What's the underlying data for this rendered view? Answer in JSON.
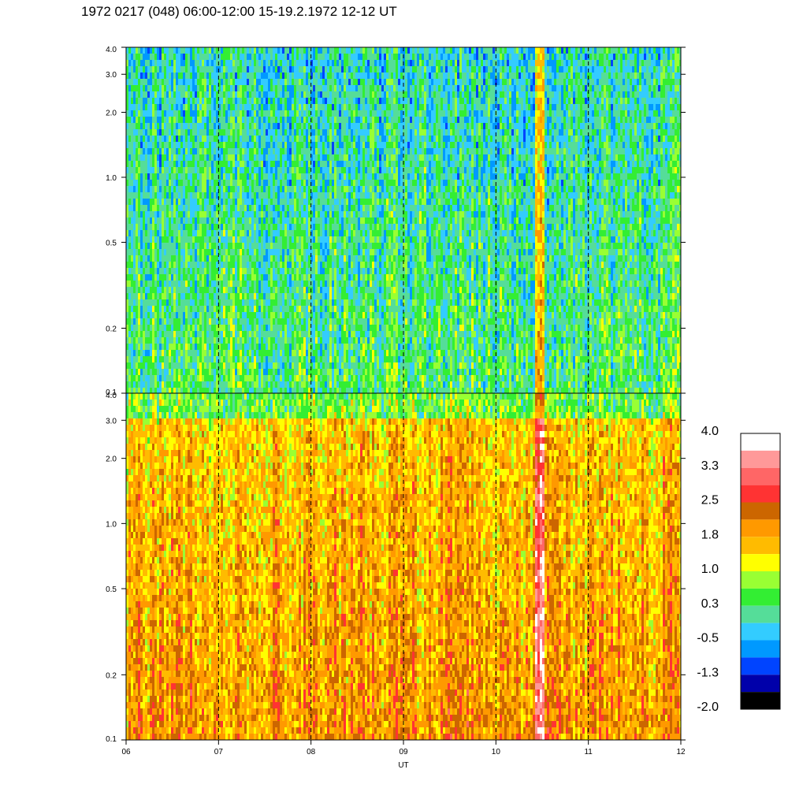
{
  "title": "1972 0217 (048) 06:00-12:00 15-19.2.1972  12-12 UT",
  "chart_data": {
    "type": "heatmap",
    "xlabel": "UT",
    "x_ticks": [
      "06",
      "07",
      "08",
      "09",
      "10",
      "11",
      "12"
    ],
    "x_range": [
      6,
      12
    ],
    "dashed_hours": [
      7,
      8,
      9,
      10,
      11
    ],
    "y_scale": "log",
    "y_range": [
      0.1,
      4.0
    ],
    "y_ticks": [
      {
        "value": 0.1,
        "label": "0.1"
      },
      {
        "value": 0.2,
        "label": "0.2"
      },
      {
        "value": 0.5,
        "label": "0.5"
      },
      {
        "value": 1.0,
        "label": "1.0"
      },
      {
        "value": 2.0,
        "label": "2.0"
      },
      {
        "value": 3.0,
        "label": "3.0"
      },
      {
        "value": 4.0,
        "label": "4.0"
      }
    ],
    "panels": [
      {
        "name": "top",
        "dominant_level": 0.3,
        "note_band_hour": 10.47
      },
      {
        "name": "bottom",
        "dominant_level": 1.8,
        "note_band_hour": 10.47
      }
    ],
    "colorbar": {
      "labels": [
        "4.0",
        "3.3",
        "2.5",
        "1.8",
        "1.0",
        "0.3",
        "-0.5",
        "-1.3",
        "-2.0"
      ],
      "colors": [
        "#ffffff",
        "#ff9999",
        "#ff6666",
        "#ff3333",
        "#cc6600",
        "#ff9900",
        "#ffbb00",
        "#ffff00",
        "#99ff33",
        "#33ee33",
        "#55dd99",
        "#33ccff",
        "#0099ff",
        "#0044ff",
        "#0000aa",
        "#000000"
      ]
    }
  }
}
